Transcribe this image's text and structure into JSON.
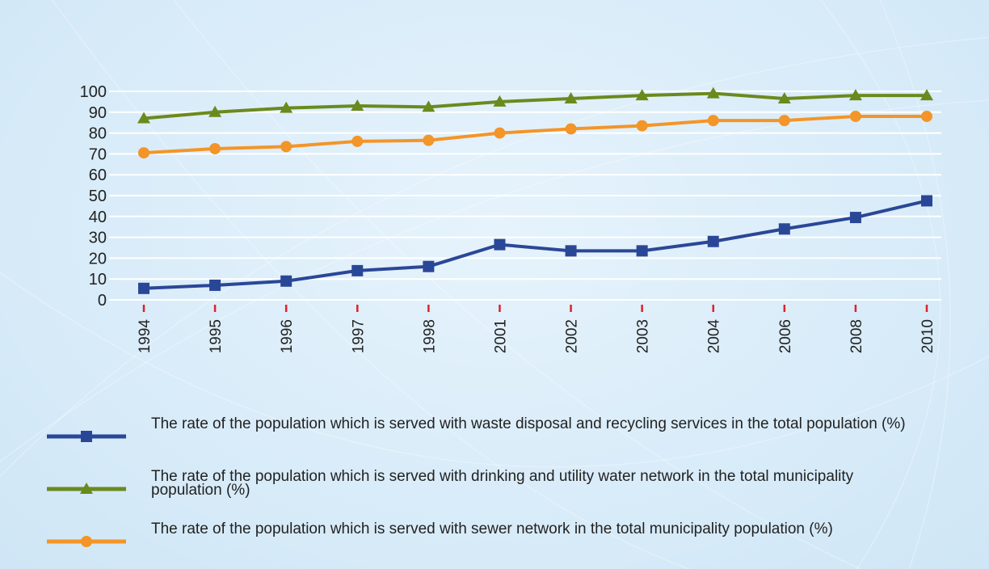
{
  "chart_data": {
    "type": "line",
    "categories": [
      "1994",
      "1995",
      "1996",
      "1997",
      "1998",
      "2001",
      "2002",
      "2003",
      "2004",
      "2006",
      "2008",
      "2010"
    ],
    "series": [
      {
        "name": "The rate of the population which is served with waste disposal and recycling services in the total population (%)",
        "color": "#2a4797",
        "marker": "square",
        "values": [
          5.5,
          7,
          9,
          14,
          16,
          26.5,
          23.5,
          23.5,
          28,
          34,
          39.5,
          47.5
        ]
      },
      {
        "name": "The rate of the population which is served with drinking and utility water network in the total municipality population (%)",
        "color": "#6a8a1e",
        "marker": "triangle",
        "values": [
          87,
          90,
          92,
          93,
          92.5,
          95,
          96.5,
          98,
          99,
          96.5,
          98,
          98
        ]
      },
      {
        "name": "The rate of the population which is served with sewer network in the total municipality population  (%)",
        "color": "#f39528",
        "marker": "circle",
        "values": [
          70.5,
          72.5,
          73.5,
          76,
          76.5,
          80,
          82,
          83.5,
          86,
          86,
          88,
          88
        ]
      }
    ],
    "ylim": [
      0,
      100
    ],
    "yticks": [
      0,
      10,
      20,
      30,
      40,
      50,
      60,
      70,
      80,
      90,
      100
    ],
    "grid": true,
    "legend": "bottom"
  }
}
